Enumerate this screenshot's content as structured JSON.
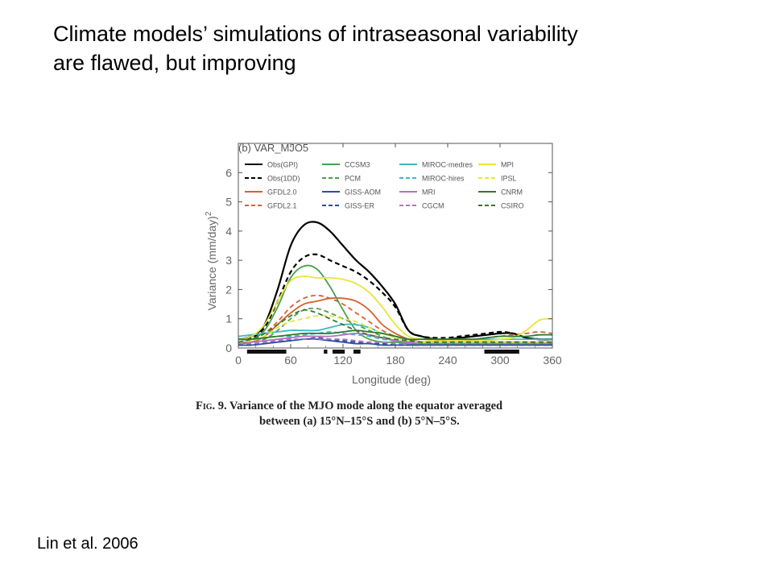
{
  "slide": {
    "title_line1": "Climate models’ simulations of intraseasonal variability",
    "title_line2": "are flawed, but improving",
    "citation": "Lin et al. 2006"
  },
  "caption": {
    "lead": "Fig. 9.",
    "line1_rest": " Variance of the MJO mode along the equator averaged",
    "line2": "between (a) 15°N–15°S and (b) 5°N–5°S."
  },
  "chart_data": {
    "type": "line",
    "title": "(b) VAR_MJO5",
    "xlabel": "Longitude (deg)",
    "ylabel": "Variance (mm/day)",
    "ylabel_superscript": "2",
    "xlim": [
      0,
      360
    ],
    "ylim": [
      0,
      7
    ],
    "xticks": [
      0,
      60,
      120,
      180,
      240,
      300,
      360
    ],
    "yticks": [
      0,
      1,
      2,
      3,
      4,
      5,
      6
    ],
    "legend_position": "top",
    "x": [
      0,
      15,
      30,
      45,
      60,
      75,
      90,
      105,
      120,
      135,
      150,
      165,
      180,
      195,
      210,
      225,
      240,
      255,
      270,
      285,
      300,
      315,
      330,
      345,
      360
    ],
    "series": [
      {
        "name": "Obs(GPI)",
        "color": "#000000",
        "dash": "solid",
        "width": 2.2,
        "values": [
          0.3,
          0.4,
          0.8,
          2.0,
          3.5,
          4.2,
          4.3,
          4.0,
          3.5,
          3.0,
          2.6,
          2.1,
          1.5,
          0.6,
          0.4,
          0.3,
          0.3,
          0.35,
          0.4,
          0.45,
          0.5,
          0.5,
          0.35,
          0.3,
          0.3
        ]
      },
      {
        "name": "Obs(1DD)",
        "color": "#000000",
        "dash": "dashed",
        "width": 2.2,
        "values": [
          0.3,
          0.35,
          0.7,
          1.6,
          2.6,
          3.1,
          3.2,
          3.0,
          2.8,
          2.6,
          2.3,
          1.9,
          1.4,
          0.6,
          0.4,
          0.35,
          0.35,
          0.4,
          0.45,
          0.5,
          0.55,
          0.5,
          0.35,
          0.3,
          0.3
        ]
      },
      {
        "name": "GFDL2.0",
        "color": "#d4622f",
        "dash": "solid",
        "width": 1.8,
        "values": [
          0.15,
          0.2,
          0.4,
          0.8,
          1.2,
          1.5,
          1.6,
          1.7,
          1.7,
          1.6,
          1.3,
          0.8,
          0.5,
          0.3,
          0.2,
          0.2,
          0.2,
          0.2,
          0.2,
          0.2,
          0.2,
          0.2,
          0.2,
          0.15,
          0.15
        ]
      },
      {
        "name": "GFDL2.1",
        "color": "#d4622f",
        "dash": "dashed",
        "width": 1.8,
        "values": [
          0.2,
          0.25,
          0.5,
          0.9,
          1.4,
          1.7,
          1.8,
          1.7,
          1.5,
          1.2,
          0.9,
          0.6,
          0.4,
          0.3,
          0.3,
          0.3,
          0.3,
          0.3,
          0.3,
          0.35,
          0.4,
          0.45,
          0.5,
          0.55,
          0.5
        ]
      },
      {
        "name": "CCSM3",
        "color": "#4aa04a",
        "dash": "solid",
        "width": 1.8,
        "values": [
          0.3,
          0.3,
          0.6,
          1.4,
          2.4,
          2.8,
          2.7,
          2.1,
          1.3,
          0.6,
          0.3,
          0.2,
          0.2,
          0.15,
          0.15,
          0.15,
          0.15,
          0.15,
          0.15,
          0.15,
          0.15,
          0.15,
          0.15,
          0.15,
          0.2
        ]
      },
      {
        "name": "PCM",
        "color": "#4aa04a",
        "dash": "dashed",
        "width": 1.8,
        "values": [
          0.15,
          0.2,
          0.3,
          0.6,
          1.0,
          1.3,
          1.35,
          1.2,
          1.0,
          0.8,
          0.6,
          0.4,
          0.25,
          0.2,
          0.15,
          0.15,
          0.15,
          0.15,
          0.15,
          0.15,
          0.15,
          0.15,
          0.15,
          0.15,
          0.15
        ]
      },
      {
        "name": "GISS-AOM",
        "color": "#2b4f9e",
        "dash": "solid",
        "width": 1.8,
        "values": [
          0.1,
          0.1,
          0.15,
          0.2,
          0.25,
          0.3,
          0.3,
          0.25,
          0.2,
          0.15,
          0.15,
          0.1,
          0.1,
          0.1,
          0.1,
          0.1,
          0.1,
          0.1,
          0.1,
          0.1,
          0.1,
          0.1,
          0.1,
          0.1,
          0.1
        ]
      },
      {
        "name": "GISS-ER",
        "color": "#2b4f9e",
        "dash": "dashed",
        "width": 1.8,
        "values": [
          0.1,
          0.1,
          0.15,
          0.2,
          0.25,
          0.3,
          0.35,
          0.3,
          0.25,
          0.2,
          0.15,
          0.15,
          0.1,
          0.1,
          0.1,
          0.1,
          0.1,
          0.1,
          0.1,
          0.1,
          0.1,
          0.1,
          0.1,
          0.1,
          0.1
        ]
      },
      {
        "name": "MIROC-medres",
        "color": "#3fb9c4",
        "dash": "solid",
        "width": 1.8,
        "values": [
          0.4,
          0.45,
          0.5,
          0.55,
          0.6,
          0.6,
          0.6,
          0.7,
          0.8,
          0.8,
          0.7,
          0.5,
          0.4,
          0.3,
          0.3,
          0.3,
          0.3,
          0.3,
          0.3,
          0.3,
          0.3,
          0.3,
          0.3,
          0.3,
          0.3
        ]
      },
      {
        "name": "MIROC-hires",
        "color": "#3fb9c4",
        "dash": "dashed",
        "width": 1.8,
        "values": [
          0.3,
          0.3,
          0.35,
          0.4,
          0.4,
          0.45,
          0.5,
          0.55,
          0.5,
          0.45,
          0.4,
          0.3,
          0.25,
          0.2,
          0.2,
          0.2,
          0.2,
          0.2,
          0.2,
          0.2,
          0.2,
          0.2,
          0.2,
          0.2,
          0.2
        ]
      },
      {
        "name": "MRI",
        "color": "#b56fc4",
        "dash": "solid",
        "width": 1.8,
        "values": [
          0.2,
          0.2,
          0.25,
          0.3,
          0.35,
          0.4,
          0.4,
          0.4,
          0.45,
          0.5,
          0.45,
          0.35,
          0.25,
          0.2,
          0.2,
          0.2,
          0.2,
          0.2,
          0.2,
          0.2,
          0.2,
          0.2,
          0.2,
          0.2,
          0.2
        ]
      },
      {
        "name": "CGCM",
        "color": "#b56fc4",
        "dash": "dashed",
        "width": 1.8,
        "values": [
          0.15,
          0.15,
          0.2,
          0.25,
          0.3,
          0.3,
          0.3,
          0.3,
          0.3,
          0.25,
          0.2,
          0.2,
          0.15,
          0.15,
          0.15,
          0.15,
          0.15,
          0.15,
          0.15,
          0.15,
          0.15,
          0.15,
          0.15,
          0.15,
          0.15
        ]
      },
      {
        "name": "MPI",
        "color": "#e8e53a",
        "dash": "solid",
        "width": 1.8,
        "values": [
          0.3,
          0.4,
          0.8,
          1.6,
          2.3,
          2.45,
          2.4,
          2.4,
          2.35,
          2.2,
          1.9,
          1.4,
          0.8,
          0.4,
          0.3,
          0.25,
          0.25,
          0.25,
          0.25,
          0.25,
          0.3,
          0.35,
          0.6,
          0.95,
          1.0
        ]
      },
      {
        "name": "IPSL",
        "color": "#e8e53a",
        "dash": "dashed",
        "width": 1.8,
        "values": [
          0.2,
          0.25,
          0.4,
          0.7,
          0.9,
          1.0,
          1.1,
          1.1,
          1.0,
          0.9,
          0.7,
          0.5,
          0.35,
          0.25,
          0.2,
          0.2,
          0.2,
          0.2,
          0.2,
          0.2,
          0.2,
          0.2,
          0.2,
          0.2,
          0.2
        ]
      },
      {
        "name": "CNRM",
        "color": "#2f7a2f",
        "dash": "solid",
        "width": 1.8,
        "values": [
          0.3,
          0.3,
          0.35,
          0.4,
          0.45,
          0.5,
          0.5,
          0.5,
          0.55,
          0.6,
          0.55,
          0.5,
          0.4,
          0.3,
          0.3,
          0.3,
          0.3,
          0.3,
          0.3,
          0.35,
          0.4,
          0.4,
          0.4,
          0.45,
          0.45
        ]
      },
      {
        "name": "CSIRO",
        "color": "#2f7a2f",
        "dash": "dashed",
        "width": 1.8,
        "values": [
          0.2,
          0.3,
          0.5,
          0.8,
          1.1,
          1.3,
          1.2,
          1.0,
          0.8,
          0.6,
          0.45,
          0.35,
          0.3,
          0.25,
          0.2,
          0.2,
          0.2,
          0.2,
          0.2,
          0.2,
          0.2,
          0.2,
          0.2,
          0.2,
          0.2
        ]
      }
    ],
    "significance_bars": [
      [
        10,
        55
      ],
      [
        98,
        102
      ],
      [
        108,
        122
      ],
      [
        132,
        140
      ],
      [
        282,
        322
      ]
    ]
  }
}
